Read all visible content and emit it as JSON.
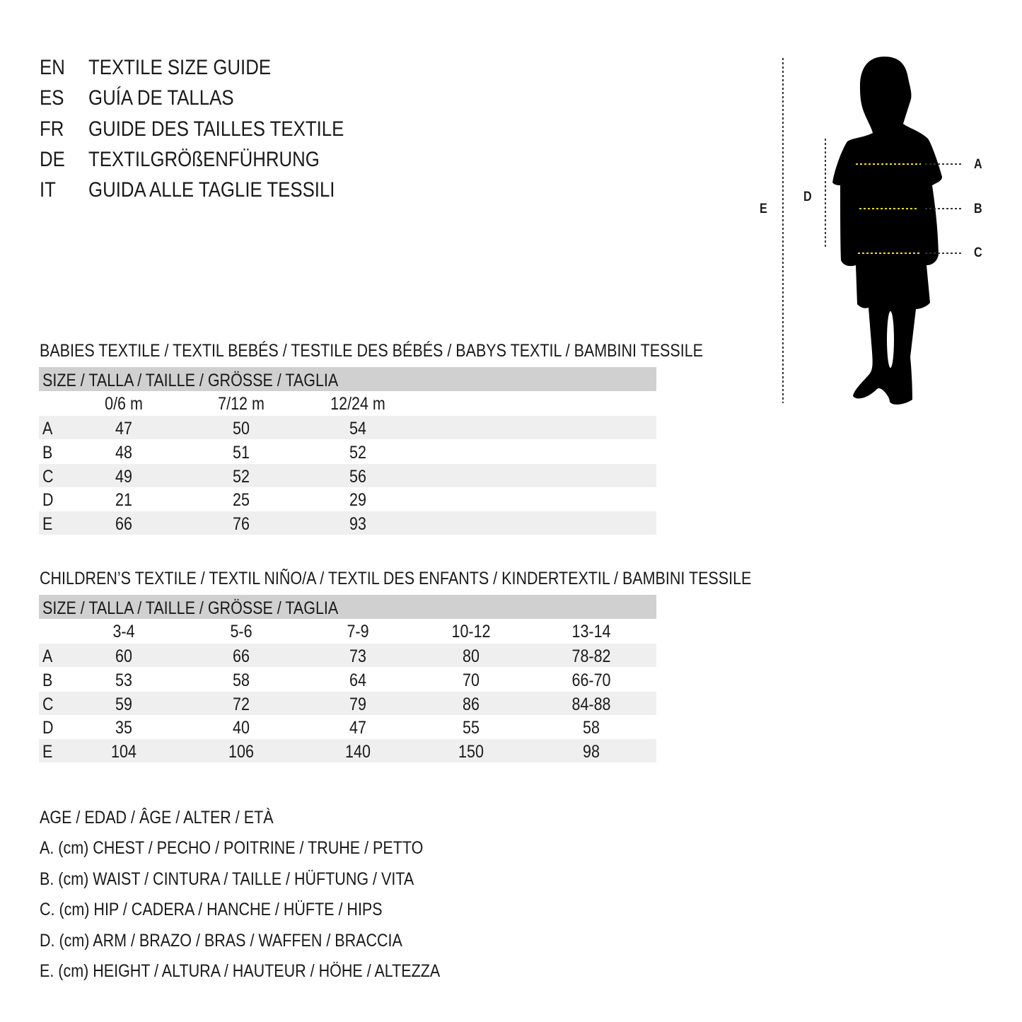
{
  "titles": [
    {
      "code": "EN",
      "text": "TEXTILE SIZE GUIDE"
    },
    {
      "code": "ES",
      "text": "GUÍA DE TALLAS"
    },
    {
      "code": "FR",
      "text": "GUIDE DES TAILLES TEXTILE"
    },
    {
      "code": "DE",
      "text": "TEXTILGRÖßENFÜHRUNG"
    },
    {
      "code": "IT",
      "text": "GUIDA ALLE TAGLIE TESSILI"
    }
  ],
  "figure": {
    "labels": {
      "a": "A",
      "b": "B",
      "c": "C",
      "d": "D",
      "e": "E"
    },
    "measure_line_color": "#f2e020",
    "icon": "child-silhouette"
  },
  "babies": {
    "title": "BABIES TEXTILE / TEXTIL BEBÉS / TESTILE DES BÉBÉS / BABYS TEXTIL / BAMBINI TESSILE",
    "size_header": "SIZE / TALLA / TAILLE / GRÖSSE / TAGLIA",
    "columns": [
      "0/6 m",
      "7/12 m",
      "12/24 m"
    ],
    "rows": [
      {
        "label": "A",
        "values": [
          "47",
          "50",
          "54"
        ]
      },
      {
        "label": "B",
        "values": [
          "48",
          "51",
          "52"
        ]
      },
      {
        "label": "C",
        "values": [
          "49",
          "52",
          "56"
        ]
      },
      {
        "label": "D",
        "values": [
          "21",
          "25",
          "29"
        ]
      },
      {
        "label": "E",
        "values": [
          "66",
          "76",
          "93"
        ]
      }
    ]
  },
  "children": {
    "title": "CHILDREN’S TEXTILE / TEXTIL NIÑO/A / TEXTIL DES ENFANTS / KINDERTEXTIL / BAMBINI TESSILE",
    "size_header": "SIZE / TALLA / TAILLE / GRÖSSE / TAGLIA",
    "columns": [
      "3-4",
      "5-6",
      "7-9",
      "10-12",
      "13-14"
    ],
    "rows": [
      {
        "label": "A",
        "values": [
          "60",
          "66",
          "73",
          "80",
          "78-82"
        ]
      },
      {
        "label": "B",
        "values": [
          "53",
          "58",
          "64",
          "70",
          "66-70"
        ]
      },
      {
        "label": "C",
        "values": [
          "59",
          "72",
          "79",
          "86",
          "84-88"
        ]
      },
      {
        "label": "D",
        "values": [
          "35",
          "40",
          "47",
          "55",
          "58"
        ]
      },
      {
        "label": "E",
        "values": [
          "104",
          "106",
          "140",
          "150",
          "98"
        ]
      }
    ]
  },
  "legend": [
    "AGE / EDAD / ÂGE / ALTER / ETÀ",
    "A. (cm) CHEST / PECHO / POITRINE / TRUHE / PETTO",
    "B. (cm) WAIST / CINTURA / TAILLE / HÜFTUNG / VITA",
    "C. (cm) HIP / CADERA / HANCHE / HÜFTE / HIPS",
    "D. (cm) ARM / BRAZO / BRAS / WAFFEN / BRACCIA",
    "E. (cm) HEIGHT / ALTURA / HAUTEUR / HÖHE / ALTEZZA"
  ]
}
